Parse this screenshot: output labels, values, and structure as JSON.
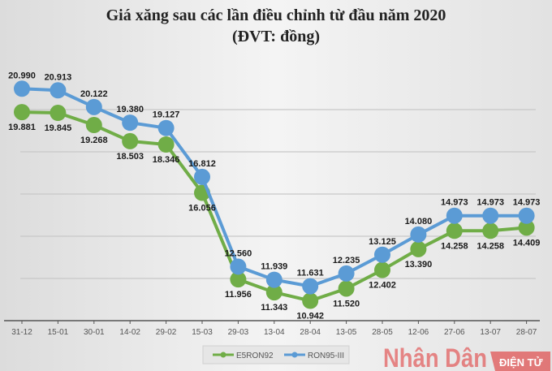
{
  "chart_data": {
    "type": "line",
    "title": "Giá xăng sau các lần điều chỉnh từ đầu năm 2020",
    "subtitle": "(ĐVT: đồng)",
    "categories": [
      "31-12",
      "15-01",
      "30-01",
      "14-02",
      "29-02",
      "15-03",
      "29-03",
      "13-04",
      "28-04",
      "13-05",
      "28-05",
      "12-06",
      "27-06",
      "13-07",
      "28-07"
    ],
    "series": [
      {
        "name": "E5RON92",
        "color": "#70ad47",
        "values": [
          19881,
          19845,
          19268,
          18503,
          18346,
          16056,
          11956,
          11343,
          10942,
          11520,
          12402,
          13390,
          14258,
          14258,
          14409
        ]
      },
      {
        "name": "RON95-III",
        "color": "#5b9bd5",
        "values": [
          20990,
          20913,
          20122,
          19380,
          19127,
          16812,
          12560,
          11939,
          11631,
          12235,
          13125,
          14080,
          14973,
          14973,
          14973
        ]
      }
    ],
    "ylim": [
      10000,
      22000
    ],
    "grid": true,
    "legend": "bottom",
    "xlabel": "",
    "ylabel": ""
  },
  "logo": {
    "text": "Nhân Dân",
    "subtext": "ĐIỆN TỬ",
    "color": "#e03030"
  }
}
